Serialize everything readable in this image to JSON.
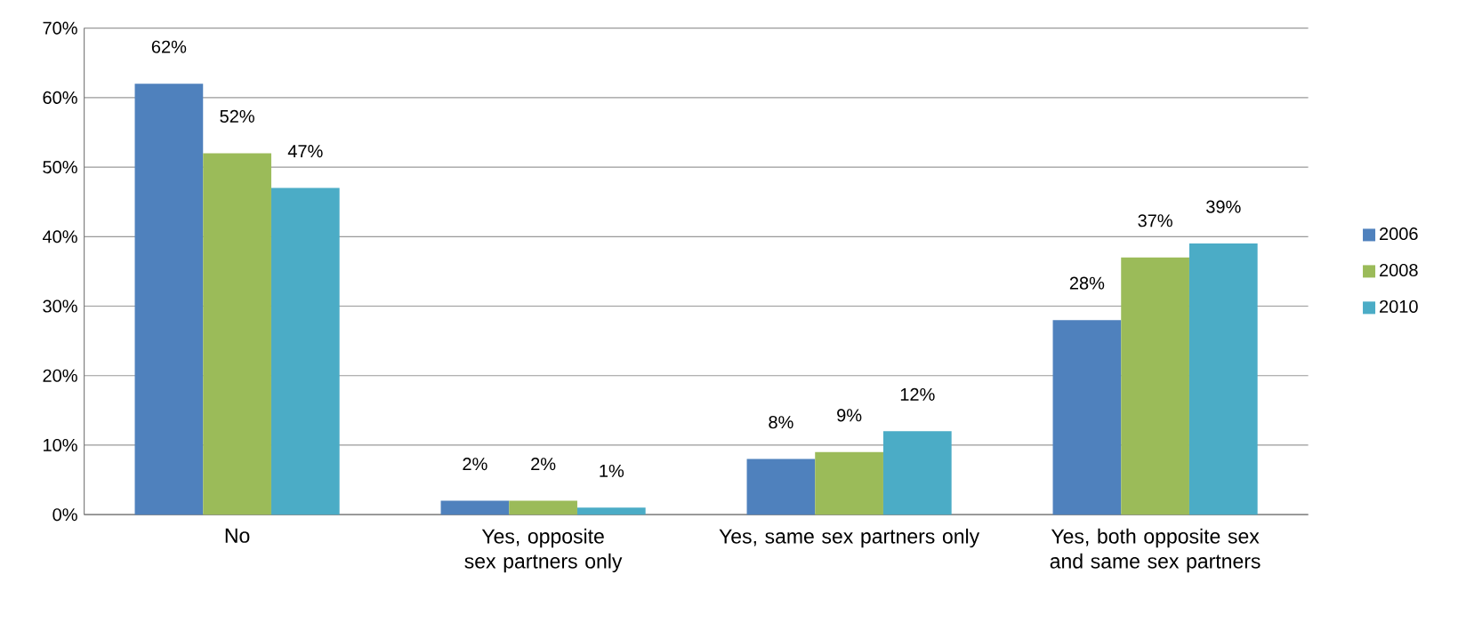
{
  "chart_data": {
    "type": "bar",
    "categories": [
      "No",
      "Yes, opposite sex partners only",
      "Yes, same sex partners only",
      "Yes, both opposite sex and same sex partners"
    ],
    "series": [
      {
        "name": "2006",
        "color": "#4f81bd",
        "values": [
          62,
          2,
          8,
          28
        ],
        "value_labels": [
          "62%",
          "2%",
          "8%",
          "28%"
        ]
      },
      {
        "name": "2008",
        "color": "#9bbb59",
        "values": [
          52,
          2,
          9,
          37
        ],
        "value_labels": [
          "52%",
          "2%",
          "9%",
          "37%"
        ]
      },
      {
        "name": "2010",
        "color": "#4bacc6",
        "values": [
          47,
          1,
          12,
          39
        ],
        "value_labels": [
          "47%",
          "1%",
          "12%",
          "39%"
        ]
      }
    ],
    "ylim": [
      0,
      70
    ],
    "yticks": [
      {
        "value": 0,
        "label": "0%"
      },
      {
        "value": 10,
        "label": "10%"
      },
      {
        "value": 20,
        "label": "20%"
      },
      {
        "value": 30,
        "label": "30%"
      },
      {
        "value": 40,
        "label": "40%"
      },
      {
        "value": 50,
        "label": "50%"
      },
      {
        "value": 60,
        "label": "60%"
      },
      {
        "value": 70,
        "label": "70%"
      }
    ],
    "grid": "y",
    "legend": "right"
  }
}
